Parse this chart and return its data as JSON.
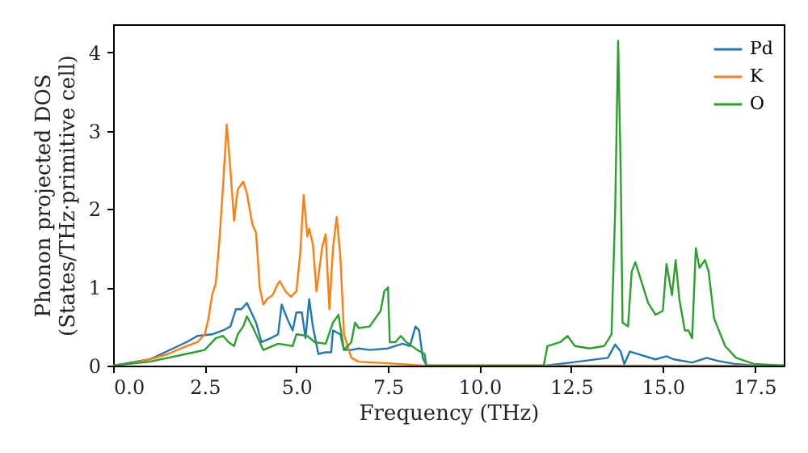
{
  "chart_data": {
    "type": "line",
    "xlabel": "Frequency (THz)",
    "ylabel": "Phonon projected DOS\n(States/THz·primitive cell)",
    "xlim": [
      0,
      18.3
    ],
    "ylim": [
      0,
      4.36
    ],
    "xticks": [
      {
        "value": 0,
        "label": "0.0"
      },
      {
        "value": 2.5,
        "label": "2.5"
      },
      {
        "value": 5,
        "label": "5.0"
      },
      {
        "value": 7.5,
        "label": "7.5"
      },
      {
        "value": 10,
        "label": "10.0"
      },
      {
        "value": 12.5,
        "label": "12.5"
      },
      {
        "value": 15,
        "label": "15.0"
      },
      {
        "value": 17.5,
        "label": "17.5"
      }
    ],
    "yticks": [
      0,
      1,
      2,
      3,
      4
    ],
    "legend": "top right",
    "grid": false,
    "line_style": "solid",
    "marker": "none",
    "series": [
      {
        "name": "Pd",
        "color": "#1f77b4",
        "x": [
          0,
          1,
          2,
          2.3,
          2.7,
          3.0,
          3.2,
          3.35,
          3.5,
          3.65,
          3.8,
          3.9,
          4.05,
          4.3,
          4.5,
          4.6,
          4.75,
          4.9,
          5.0,
          5.15,
          5.25,
          5.35,
          5.45,
          5.6,
          5.8,
          5.95,
          6.0,
          6.2,
          6.3,
          6.5,
          6.7,
          7.0,
          7.5,
          7.9,
          8.1,
          8.25,
          8.35,
          8.45,
          8.55,
          11.8,
          12.5,
          13.5,
          13.7,
          13.85,
          13.95,
          14.1,
          14.3,
          14.8,
          15.1,
          15.3,
          15.8,
          16.2,
          16.5,
          17.0,
          17.5,
          18.3
        ],
        "values": [
          0,
          0.08,
          0.3,
          0.38,
          0.4,
          0.45,
          0.5,
          0.72,
          0.72,
          0.8,
          0.65,
          0.55,
          0.3,
          0.35,
          0.4,
          0.78,
          0.6,
          0.45,
          0.68,
          0.68,
          0.35,
          0.85,
          0.5,
          0.15,
          0.17,
          0.17,
          0.45,
          0.4,
          0.2,
          0.2,
          0.22,
          0.2,
          0.22,
          0.28,
          0.25,
          0.5,
          0.45,
          0.1,
          0,
          0,
          0.04,
          0.1,
          0.27,
          0.18,
          0.02,
          0.18,
          0.15,
          0.08,
          0.12,
          0.08,
          0.04,
          0.1,
          0.06,
          0.02,
          0,
          0
        ]
      },
      {
        "name": "K",
        "color": "#ff7f0e",
        "x": [
          0,
          0.5,
          1.0,
          1.5,
          2.0,
          2.3,
          2.5,
          2.6,
          2.7,
          2.8,
          2.9,
          3.0,
          3.1,
          3.2,
          3.3,
          3.4,
          3.55,
          3.65,
          3.8,
          3.9,
          4.0,
          4.1,
          4.2,
          4.35,
          4.5,
          4.55,
          4.7,
          4.85,
          5.0,
          5.1,
          5.2,
          5.3,
          5.35,
          5.45,
          5.55,
          5.7,
          5.8,
          5.9,
          6.0,
          6.1,
          6.2,
          6.3,
          6.5,
          6.7,
          7.5,
          8.5,
          18.3
        ],
        "values": [
          0,
          0.03,
          0.08,
          0.15,
          0.25,
          0.3,
          0.4,
          0.6,
          0.9,
          1.05,
          1.6,
          2.3,
          3.08,
          2.5,
          1.85,
          2.25,
          2.35,
          2.2,
          1.8,
          1.7,
          1.0,
          0.78,
          0.85,
          0.9,
          1.05,
          1.08,
          0.95,
          0.88,
          0.95,
          1.4,
          2.18,
          1.65,
          1.75,
          1.55,
          0.95,
          1.5,
          1.68,
          0.72,
          1.5,
          1.9,
          1.4,
          0.4,
          0.1,
          0.05,
          0.03,
          0,
          0
        ]
      },
      {
        "name": "O",
        "color": "#2ca02c",
        "x": [
          0,
          1,
          2,
          2.5,
          2.8,
          3.0,
          3.15,
          3.3,
          3.4,
          3.55,
          3.65,
          3.8,
          4.1,
          4.5,
          4.9,
          5.0,
          5.3,
          5.5,
          5.8,
          6.0,
          6.15,
          6.3,
          6.5,
          6.6,
          6.7,
          7.0,
          7.3,
          7.4,
          7.5,
          7.55,
          7.7,
          7.85,
          8.0,
          8.3,
          8.5,
          8.55,
          11.75,
          11.85,
          12.2,
          12.4,
          12.6,
          13.0,
          13.4,
          13.6,
          13.7,
          13.78,
          13.85,
          13.9,
          14.05,
          14.15,
          14.25,
          14.4,
          14.6,
          14.8,
          15.0,
          15.1,
          15.25,
          15.35,
          15.45,
          15.6,
          15.7,
          15.8,
          15.9,
          16.0,
          16.15,
          16.25,
          16.4,
          16.7,
          17.0,
          17.5,
          18.3
        ],
        "values": [
          0,
          0.05,
          0.15,
          0.2,
          0.35,
          0.38,
          0.3,
          0.25,
          0.4,
          0.5,
          0.63,
          0.5,
          0.2,
          0.28,
          0.25,
          0.4,
          0.38,
          0.3,
          0.28,
          0.55,
          0.65,
          0.2,
          0.3,
          0.55,
          0.48,
          0.5,
          0.7,
          0.95,
          1.0,
          0.3,
          0.3,
          0.38,
          0.3,
          0.2,
          0.15,
          0,
          0,
          0.25,
          0.3,
          0.38,
          0.25,
          0.22,
          0.25,
          0.4,
          2.0,
          4.15,
          2.5,
          0.55,
          0.5,
          1.2,
          1.32,
          1.1,
          0.8,
          0.65,
          0.7,
          1.3,
          0.9,
          1.35,
          0.85,
          0.45,
          0.45,
          0.35,
          1.5,
          1.25,
          1.35,
          1.2,
          0.6,
          0.25,
          0.1,
          0.02,
          0
        ]
      }
    ]
  }
}
